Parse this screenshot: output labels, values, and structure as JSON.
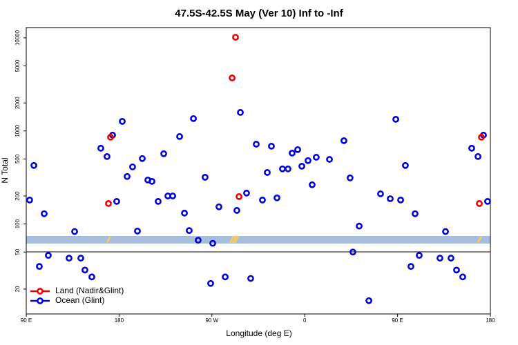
{
  "chart_data": {
    "type": "scatter",
    "title": "47.5S-42.5S May (Ver 10)   Inf to -Inf",
    "x_label": "Longitude (deg E)",
    "y_label": "N Total",
    "log_y": true,
    "xlim": [
      90,
      540
    ],
    "ylim": [
      10.8,
      12900
    ],
    "xticks": [
      {
        "value": 90,
        "label": "90 E"
      },
      180,
      {
        "value": 270,
        "label": "90 W"
      },
      {
        "value": 360,
        "label": "0"
      },
      {
        "value": 450,
        "label": "90 E"
      },
      {
        "value": 540,
        "label": "180"
      }
    ],
    "yticks": [
      20,
      50,
      100,
      200,
      500,
      1000,
      2000,
      5000,
      10000
    ],
    "legend": "bottom-left",
    "series": [
      {
        "name": "Land (Nadir&Glint)",
        "color": "#ee0000",
        "x": [
          169.7,
          171.7,
          289.6,
          292.9,
          296.3,
          529.3,
          531.3
        ],
        "values": [
          166,
          857,
          3715,
          10160,
          197,
          166,
          857
        ]
      },
      {
        "name": "Ocean (Glint)",
        "color": "#0000dd",
        "x": [
          93.3,
          97.4,
          102.7,
          107.4,
          111.4,
          131.5,
          136.9,
          142.9,
          146.9,
          153.6,
          162.3,
          168.3,
          173.7,
          177.7,
          183.1,
          187.8,
          193.1,
          197.8,
          202.5,
          207.9,
          211.9,
          217.9,
          223.3,
          227.3,
          232.0,
          238.7,
          243.4,
          248.0,
          252.1,
          256.7,
          263.4,
          268.8,
          270.8,
          276.8,
          282.9,
          294.2,
          297.6,
          303.6,
          307.6,
          313.0,
          319.0,
          323.7,
          327.7,
          333.1,
          338.4,
          343.8,
          347.8,
          353.2,
          357.2,
          363.2,
          367.2,
          371.2,
          384.0,
          398.0,
          404.0,
          406.7,
          412.8,
          422.2,
          433.5,
          442.9,
          448.3,
          453.0,
          457.6,
          463.0,
          467.0,
          471.0,
          491.1,
          496.5,
          501.8,
          507.2,
          513.2,
          521.9,
          528.0,
          533.3,
          537.3
        ],
        "values": [
          181,
          426,
          35,
          129,
          46,
          43,
          83,
          43,
          32,
          27,
          652,
          531,
          902,
          175,
          1268,
          324,
          411,
          84,
          505,
          297,
          287,
          175,
          569,
          200,
          200,
          871,
          131,
          85,
          1358,
          67,
          318,
          23,
          62,
          153,
          27,
          140,
          1581,
          215,
          26,
          721,
          181,
          358,
          686,
          191,
          391,
          391,
          578,
          630,
          418,
          480,
          264,
          522,
          495,
          786,
          313,
          50,
          95,
          15,
          211,
          187,
          1334,
          181,
          426,
          35,
          129,
          46,
          43,
          83,
          43,
          32,
          27,
          652,
          531,
          902,
          175
        ]
      }
    ]
  }
}
